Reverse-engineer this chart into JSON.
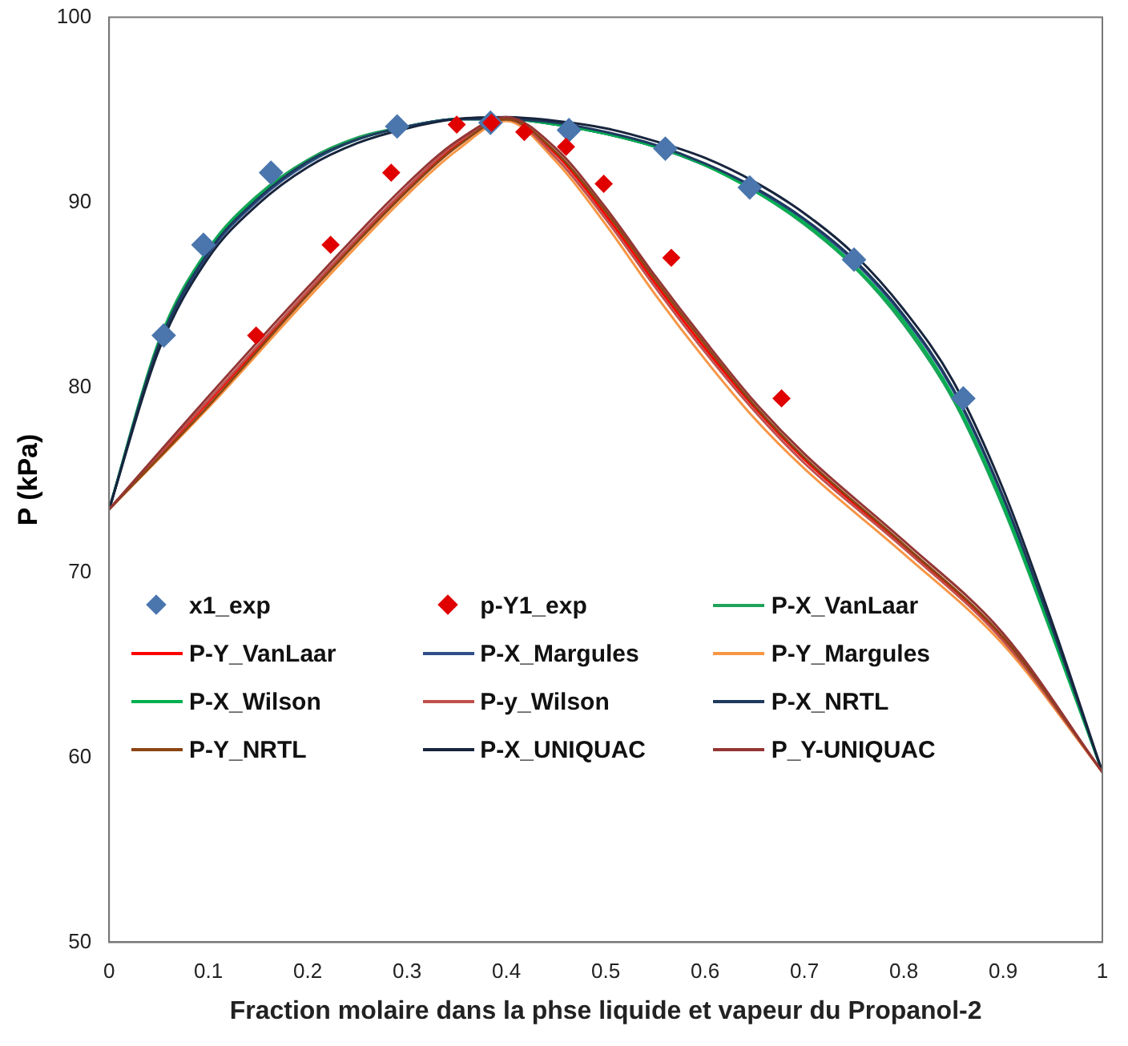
{
  "chart_data": {
    "type": "line",
    "xlabel": "Fraction molaire dans la phse liquide et vapeur du Propanol-2",
    "ylabel": "P (kPa)",
    "xlim": [
      0,
      1
    ],
    "xticks": [
      0,
      0.1,
      0.2,
      0.3,
      0.4,
      0.5,
      0.6,
      0.7,
      0.8,
      0.9,
      1
    ],
    "ylim": [
      50,
      100
    ],
    "yticks": [
      50,
      60,
      70,
      80,
      90,
      100
    ],
    "grid": false,
    "legend": "bottom left",
    "line_style": "solid",
    "series": [
      {
        "name": "x1_exp",
        "type": "scatter",
        "marker": "diamond",
        "color": "#4a76ad",
        "x": [
          0.055,
          0.095,
          0.163,
          0.29,
          0.384,
          0.463,
          0.56,
          0.645,
          0.75,
          0.86
        ],
        "values": [
          82.8,
          87.7,
          91.6,
          94.1,
          94.3,
          93.9,
          92.9,
          90.8,
          86.9,
          79.4
        ]
      },
      {
        "name": "p-Y1_exp",
        "type": "scatter",
        "marker": "diamond",
        "color": "#e00000",
        "x": [
          0.148,
          0.223,
          0.284,
          0.35,
          0.385,
          0.418,
          0.46,
          0.498,
          0.566,
          0.677
        ],
        "values": [
          82.8,
          87.7,
          91.6,
          94.2,
          94.3,
          93.8,
          93.0,
          91.0,
          87.0,
          79.4
        ]
      },
      {
        "name": "P-X_VanLaar",
        "color": "#1fa35b",
        "x": [
          0,
          0.05,
          0.1,
          0.15,
          0.2,
          0.25,
          0.3,
          0.35,
          0.4,
          0.45,
          0.5,
          0.55,
          0.6,
          0.65,
          0.7,
          0.75,
          0.8,
          0.85,
          0.9,
          0.95,
          1
        ],
        "values": [
          73.4,
          82.5,
          87.5,
          90.4,
          92.3,
          93.5,
          94.1,
          94.5,
          94.5,
          94.2,
          93.7,
          93.0,
          92.0,
          90.6,
          88.8,
          86.5,
          83.4,
          79.3,
          73.5,
          66.5,
          59.2
        ]
      },
      {
        "name": "P-Y_VanLaar",
        "color": "#ff0000",
        "x": [
          0,
          0.1,
          0.2,
          0.3,
          0.35,
          0.4,
          0.45,
          0.5,
          0.55,
          0.6,
          0.65,
          0.7,
          0.8,
          0.9,
          1
        ],
        "values": [
          73.4,
          79.2,
          85.1,
          90.7,
          93.1,
          94.5,
          92.6,
          89.3,
          85.6,
          82.1,
          78.9,
          76.1,
          71.4,
          66.4,
          59.2
        ]
      },
      {
        "name": "P-X_Margules",
        "color": "#2f4f8a",
        "x": [
          0,
          0.05,
          0.1,
          0.15,
          0.2,
          0.25,
          0.3,
          0.35,
          0.4,
          0.45,
          0.5,
          0.55,
          0.6,
          0.65,
          0.7,
          0.75,
          0.8,
          0.85,
          0.9,
          0.95,
          1
        ],
        "values": [
          73.4,
          82.2,
          87.2,
          90.1,
          92.1,
          93.4,
          94.1,
          94.5,
          94.5,
          94.2,
          93.7,
          93.0,
          92.0,
          90.7,
          89.0,
          86.8,
          83.8,
          79.8,
          74.0,
          66.8,
          59.2
        ]
      },
      {
        "name": "P-Y_Margules",
        "color": "#f79646",
        "x": [
          0,
          0.1,
          0.2,
          0.3,
          0.35,
          0.4,
          0.45,
          0.5,
          0.55,
          0.6,
          0.65,
          0.7,
          0.8,
          0.9,
          1
        ],
        "values": [
          73.4,
          78.9,
          84.8,
          90.4,
          92.8,
          94.4,
          92.2,
          88.8,
          85.0,
          81.5,
          78.3,
          75.6,
          71.0,
          66.1,
          59.2
        ]
      },
      {
        "name": "P-X_Wilson",
        "color": "#00b050",
        "x": [
          0,
          0.05,
          0.1,
          0.15,
          0.2,
          0.25,
          0.3,
          0.35,
          0.4,
          0.45,
          0.5,
          0.55,
          0.6,
          0.65,
          0.7,
          0.75,
          0.8,
          0.85,
          0.9,
          0.95,
          1
        ],
        "values": [
          73.4,
          82.4,
          87.4,
          90.3,
          92.2,
          93.4,
          94.1,
          94.5,
          94.5,
          94.2,
          93.7,
          93.0,
          92.0,
          90.6,
          88.9,
          86.6,
          83.6,
          79.5,
          73.7,
          66.6,
          59.2
        ]
      },
      {
        "name": "P-y_Wilson",
        "color": "#c0504d",
        "x": [
          0,
          0.1,
          0.2,
          0.3,
          0.35,
          0.4,
          0.45,
          0.5,
          0.55,
          0.6,
          0.65,
          0.7,
          0.8,
          0.9,
          1
        ],
        "values": [
          73.4,
          79.3,
          85.2,
          90.8,
          93.2,
          94.5,
          92.4,
          89.1,
          85.4,
          81.9,
          78.7,
          75.9,
          71.3,
          66.3,
          59.2
        ]
      },
      {
        "name": "P-X_NRTL",
        "color": "#1f3a5f",
        "x": [
          0,
          0.05,
          0.1,
          0.15,
          0.2,
          0.25,
          0.3,
          0.35,
          0.4,
          0.45,
          0.5,
          0.55,
          0.6,
          0.65,
          0.7,
          0.75,
          0.8,
          0.85,
          0.9,
          0.95,
          1
        ],
        "values": [
          73.4,
          82.3,
          87.3,
          90.2,
          92.2,
          93.4,
          94.1,
          94.5,
          94.5,
          94.3,
          93.8,
          93.1,
          92.1,
          90.8,
          89.1,
          86.9,
          83.9,
          79.9,
          74.1,
          66.9,
          59.2
        ]
      },
      {
        "name": "P-Y_NRTL",
        "color": "#8b4513",
        "x": [
          0,
          0.1,
          0.2,
          0.3,
          0.35,
          0.4,
          0.45,
          0.5,
          0.55,
          0.6,
          0.65,
          0.7,
          0.8,
          0.9,
          1
        ],
        "values": [
          73.4,
          79.0,
          85.0,
          90.6,
          93.0,
          94.5,
          92.7,
          89.5,
          85.8,
          82.3,
          79.0,
          76.2,
          71.5,
          66.5,
          59.2
        ]
      },
      {
        "name": "P-X_UNIQUAC",
        "color": "#17253d",
        "x": [
          0,
          0.05,
          0.1,
          0.15,
          0.2,
          0.25,
          0.3,
          0.35,
          0.4,
          0.45,
          0.5,
          0.55,
          0.6,
          0.65,
          0.7,
          0.75,
          0.8,
          0.85,
          0.9,
          0.95,
          1
        ],
        "values": [
          73.4,
          82.0,
          87.0,
          89.9,
          91.9,
          93.2,
          94.0,
          94.5,
          94.6,
          94.4,
          94.0,
          93.3,
          92.4,
          91.1,
          89.4,
          87.2,
          84.2,
          80.3,
          74.5,
          67.2,
          59.2
        ]
      },
      {
        "name": "P_Y-UNIQUAC",
        "color": "#943634",
        "x": [
          0,
          0.1,
          0.2,
          0.3,
          0.35,
          0.4,
          0.45,
          0.5,
          0.55,
          0.6,
          0.65,
          0.7,
          0.8,
          0.9,
          1
        ],
        "values": [
          73.4,
          79.5,
          85.4,
          91.0,
          93.3,
          94.6,
          92.9,
          89.7,
          86.0,
          82.5,
          79.2,
          76.4,
          71.7,
          66.7,
          59.2
        ]
      }
    ]
  }
}
